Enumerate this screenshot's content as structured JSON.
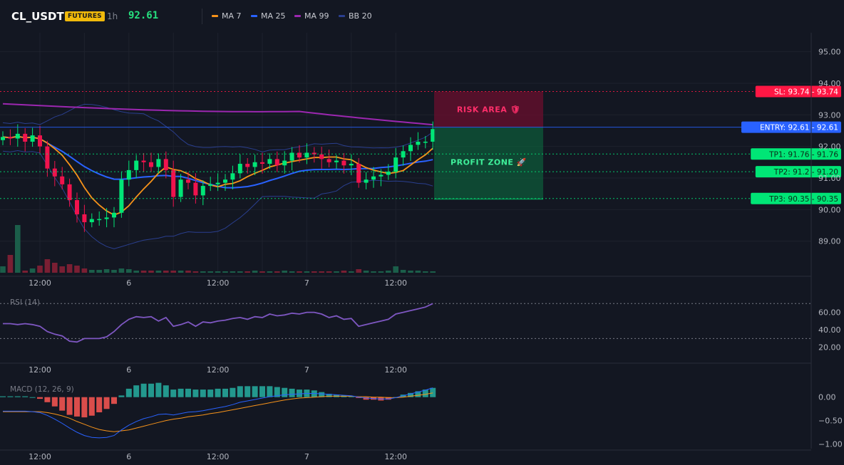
{
  "header": {
    "symbol": "CL_USDT",
    "badge": "FUTURES",
    "timeframe": "1h",
    "price": "92.61",
    "legend": [
      {
        "label": "MA 7",
        "color": "#f7931a"
      },
      {
        "label": "MA 25",
        "color": "#2962ff"
      },
      {
        "label": "MA 99",
        "color": "#9c27b0"
      },
      {
        "label": "BB 20",
        "color": "#2a3f8f"
      }
    ]
  },
  "colors": {
    "up": "#00e676",
    "down": "#f0134d",
    "vol_up": "#1b5e4a",
    "vol_down": "#7a1f33",
    "entry": "#2962ff",
    "sl": "#ff1744",
    "tp": "#00e676",
    "rsi": "#7e57c2",
    "macd_line": "#2962ff",
    "signal_line": "#f7931a",
    "hist_up": "#26a69a",
    "hist_down": "#ef5350"
  },
  "chart_data": [
    {
      "type": "candlestick",
      "title": "CL_USDT 1h",
      "y_ticks": [
        95.0,
        94.0,
        93.0,
        92.0,
        91.0,
        90.0,
        89.0
      ],
      "y_tick_labels": [
        "95.00",
        "94.00",
        "93.00",
        "92.00",
        "91.00",
        "90.00",
        "89.00"
      ],
      "ylim": [
        88.0,
        95.6
      ],
      "x_tick_labels": [
        "12:00",
        "6",
        "12:00",
        "7",
        "12:00"
      ],
      "x_tick_bars": [
        5,
        17,
        29,
        41,
        53
      ],
      "closes": [
        92.3,
        92.25,
        92.4,
        92.15,
        92.35,
        92.0,
        91.3,
        91.05,
        90.8,
        90.3,
        89.85,
        89.6,
        89.7,
        89.7,
        89.75,
        89.9,
        90.95,
        91.25,
        91.55,
        91.5,
        91.35,
        91.6,
        91.25,
        90.4,
        90.95,
        90.85,
        90.45,
        90.75,
        90.8,
        90.85,
        90.95,
        91.15,
        91.45,
        91.35,
        91.5,
        91.45,
        91.6,
        91.4,
        91.55,
        91.8,
        91.65,
        91.8,
        91.75,
        91.6,
        91.5,
        91.55,
        91.4,
        91.45,
        90.85,
        90.95,
        91.05,
        91.1,
        91.2,
        91.65,
        91.85,
        92.05,
        92.15,
        92.15,
        92.55
      ],
      "labels": {
        "sl": "SL: 93.74",
        "entry": "ENTRY: 92.61",
        "tp1": "TP1: 91.76",
        "tp2": "TP2: 91.2",
        "tp3": "TP3: 90.35"
      },
      "levels": {
        "sl": 93.74,
        "entry": 92.61,
        "tp1": 91.76,
        "tp2": 91.2,
        "tp3": 90.35
      },
      "level_axis_labels": {
        "sl": "93.74",
        "entry": "92.61",
        "tp1": "91.76",
        "tp2": "91.20",
        "tp3": "90.35"
      },
      "zones": {
        "risk": "RISK AREA 🛡",
        "profit": "PROFIT ZONE 🚀"
      }
    },
    {
      "type": "line",
      "title": "RSI (14)",
      "y_ticks": [
        60,
        40,
        20
      ],
      "y_tick_labels": [
        "60.00",
        "40.00",
        "20.00"
      ],
      "ylim": [
        10,
        80
      ],
      "bands": [
        70,
        30
      ],
      "x_tick_labels": [
        "12:00",
        "6",
        "12:00",
        "7",
        "12:00"
      ],
      "values": [
        47,
        47,
        46,
        47,
        46,
        44,
        38,
        35,
        33,
        27,
        26,
        30,
        30,
        30,
        32,
        38,
        46,
        52,
        55,
        54,
        55,
        50,
        54,
        44,
        46,
        49,
        44,
        49,
        48,
        50,
        51,
        53,
        54,
        52,
        55,
        54,
        58,
        56,
        57,
        59,
        58,
        60,
        60,
        58,
        54,
        56,
        52,
        53,
        44,
        46,
        48,
        50,
        52,
        58,
        60,
        62,
        64,
        66,
        70
      ]
    },
    {
      "type": "line",
      "title": "MACD (12, 26, 9)",
      "y_ticks": [
        0.0,
        -0.5,
        -1.0
      ],
      "y_tick_labels": [
        "0.00",
        "−0.50",
        "−1.00"
      ],
      "ylim": [
        -1.1,
        0.3
      ],
      "x_tick_labels": [
        "12:00",
        "6",
        "12:00",
        "7",
        "12:00"
      ],
      "macd": [
        -0.3,
        -0.3,
        -0.3,
        -0.3,
        -0.31,
        -0.33,
        -0.39,
        -0.47,
        -0.56,
        -0.66,
        -0.75,
        -0.82,
        -0.86,
        -0.87,
        -0.86,
        -0.82,
        -0.7,
        -0.6,
        -0.52,
        -0.46,
        -0.42,
        -0.37,
        -0.36,
        -0.38,
        -0.35,
        -0.32,
        -0.31,
        -0.29,
        -0.26,
        -0.23,
        -0.2,
        -0.16,
        -0.11,
        -0.08,
        -0.05,
        -0.02,
        0.01,
        0.03,
        0.05,
        0.06,
        0.07,
        0.08,
        0.08,
        0.07,
        0.06,
        0.05,
        0.04,
        0.03,
        0.0,
        -0.02,
        -0.03,
        -0.04,
        -0.04,
        -0.01,
        0.03,
        0.07,
        0.11,
        0.15,
        0.2
      ],
      "signal": [
        -0.31,
        -0.31,
        -0.31,
        -0.31,
        -0.31,
        -0.31,
        -0.33,
        -0.36,
        -0.4,
        -0.45,
        -0.52,
        -0.58,
        -0.64,
        -0.69,
        -0.72,
        -0.74,
        -0.72,
        -0.7,
        -0.66,
        -0.62,
        -0.58,
        -0.54,
        -0.5,
        -0.47,
        -0.45,
        -0.42,
        -0.4,
        -0.38,
        -0.35,
        -0.33,
        -0.3,
        -0.27,
        -0.24,
        -0.21,
        -0.18,
        -0.15,
        -0.12,
        -0.09,
        -0.06,
        -0.04,
        -0.02,
        -0.01,
        0.0,
        0.01,
        0.02,
        0.02,
        0.02,
        0.02,
        0.01,
        0.01,
        0.0,
        0.0,
        -0.01,
        -0.01,
        0.0,
        0.02,
        0.04,
        0.06,
        0.09
      ]
    }
  ]
}
